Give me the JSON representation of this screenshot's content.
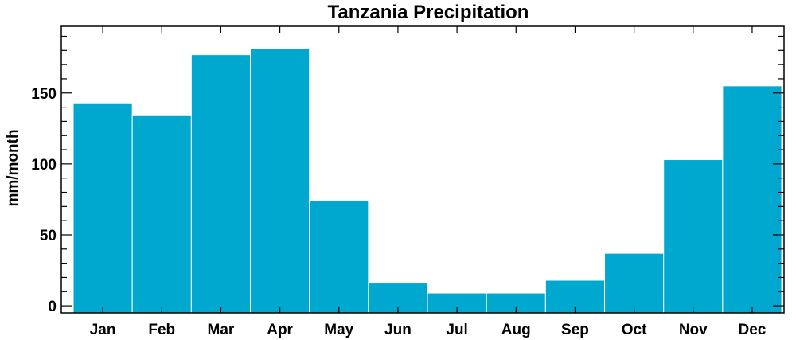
{
  "chart_data": {
    "type": "bar",
    "title": "Tanzania Precipitation",
    "xlabel": "",
    "ylabel": "mm/month",
    "categories": [
      "Jan",
      "Feb",
      "Mar",
      "Apr",
      "May",
      "Jun",
      "Jul",
      "Aug",
      "Sep",
      "Oct",
      "Nov",
      "Dec"
    ],
    "values": [
      143,
      134,
      177,
      181,
      74,
      16,
      9,
      9,
      18,
      37,
      103,
      155
    ],
    "ylim": [
      -5,
      197
    ],
    "yticks": [
      0,
      50,
      100,
      150
    ],
    "yticks_labels": [
      "0",
      "50",
      "100",
      "150"
    ],
    "grid": false,
    "bar_color": "#00a8d0",
    "bar_edge_color": "#ffffff"
  }
}
